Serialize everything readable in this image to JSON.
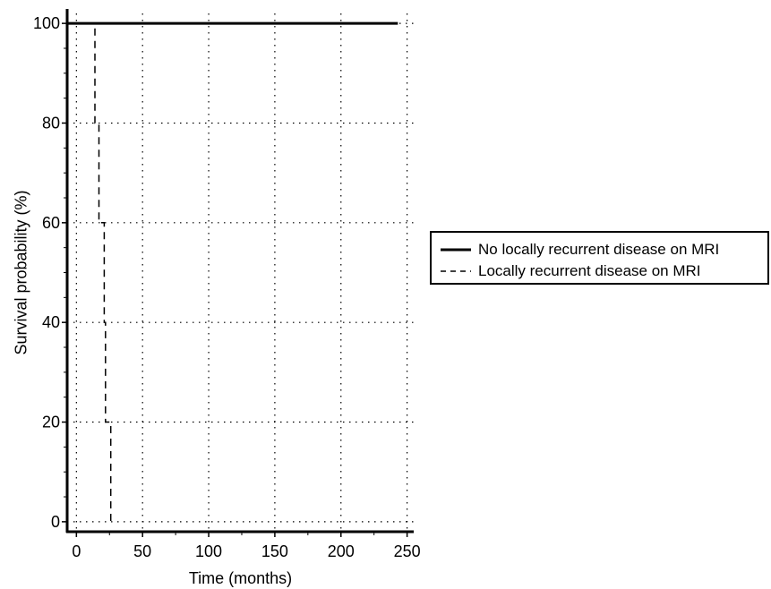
{
  "chart_data": {
    "type": "line",
    "title": "",
    "xlabel": "Time (months)",
    "ylabel": "Survival probability (%)",
    "xlim": [
      -7,
      255
    ],
    "ylim": [
      -2,
      102
    ],
    "xticks": [
      0,
      50,
      100,
      150,
      200,
      250
    ],
    "yticks": [
      0,
      20,
      40,
      60,
      80,
      100
    ],
    "grid": true,
    "legend_position": "right",
    "series": [
      {
        "name": "No locally recurrent disease on MRI",
        "style": "solid",
        "color": "#000000",
        "points": [
          [
            -7,
            100
          ],
          [
            243,
            100
          ]
        ]
      },
      {
        "name": "Locally recurrent disease on MRI",
        "style": "dashed",
        "color": "#000000",
        "points": [
          [
            14,
            99
          ],
          [
            14,
            80
          ],
          [
            17,
            80
          ],
          [
            17,
            60
          ],
          [
            21,
            60
          ],
          [
            21,
            40
          ],
          [
            22,
            40
          ],
          [
            22,
            20
          ],
          [
            26,
            20
          ],
          [
            26,
            0
          ]
        ]
      }
    ]
  }
}
